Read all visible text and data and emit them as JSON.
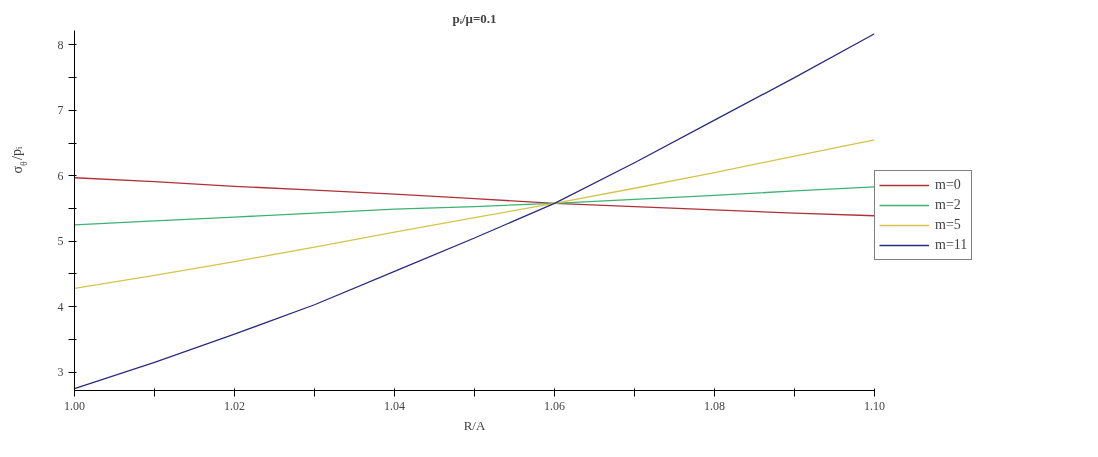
{
  "chart_data": {
    "type": "line",
    "title": "pᵢ/μ=0.1",
    "xlabel": "R/A",
    "ylabel": "σ$_{θ}$/pᵢ",
    "x": [
      1.0,
      1.01,
      1.02,
      1.03,
      1.04,
      1.05,
      1.06,
      1.07,
      1.08,
      1.09,
      1.1
    ],
    "series": [
      {
        "name": "m=0",
        "color": "#b0303a",
        "values": [
          5.97,
          5.91,
          5.84,
          5.78,
          5.72,
          5.65,
          5.58,
          5.53,
          5.48,
          5.43,
          5.39
        ]
      },
      {
        "name": "m=2",
        "color": "#3cb371",
        "values": [
          5.25,
          5.31,
          5.37,
          5.43,
          5.49,
          5.53,
          5.58,
          5.64,
          5.7,
          5.77,
          5.83
        ]
      },
      {
        "name": "m=5",
        "color": "#d4c44a",
        "values": [
          4.28,
          4.48,
          4.69,
          4.91,
          5.14,
          5.36,
          5.58,
          5.81,
          6.05,
          6.3,
          6.55
        ]
      },
      {
        "name": "m=11",
        "color": "#2b2b80",
        "values": [
          2.75,
          3.15,
          3.58,
          4.03,
          4.54,
          5.05,
          5.58,
          6.2,
          6.85,
          7.5,
          8.17
        ]
      }
    ],
    "xlim": [
      1.0,
      1.1
    ],
    "ylim": [
      2.72,
      8.22
    ],
    "xticks": [
      {
        "value": 1.0,
        "label": "1.00"
      },
      {
        "value": 1.01,
        "label": null
      },
      {
        "value": 1.02,
        "label": "1.02"
      },
      {
        "value": 1.03,
        "label": null
      },
      {
        "value": 1.04,
        "label": "1.04"
      },
      {
        "value": 1.05,
        "label": null
      },
      {
        "value": 1.06,
        "label": "1.06"
      },
      {
        "value": 1.07,
        "label": null
      },
      {
        "value": 1.08,
        "label": "1.08"
      },
      {
        "value": 1.09,
        "label": null
      },
      {
        "value": 1.1,
        "label": "1.10"
      }
    ],
    "yticks": [
      3,
      {
        "value": 3.5,
        "label": null
      },
      4,
      {
        "value": 4.5,
        "label": null
      },
      5,
      {
        "value": 5.5,
        "label": null
      },
      6,
      {
        "value": 6.5,
        "label": null
      },
      7,
      {
        "value": 7.5,
        "label": null
      },
      8
    ],
    "grid": false,
    "legend": "right",
    "marker": "none",
    "line_style": "solid"
  }
}
